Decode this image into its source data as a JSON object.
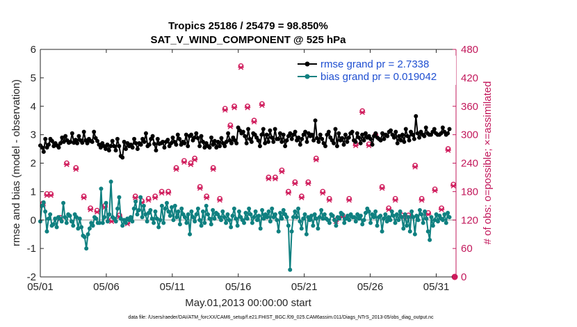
{
  "chart_data": {
    "type": "line",
    "title": "Tropics 25186 / 25479 = 98.850%",
    "subtitle": "SAT_V_WIND_COMPONENT @ 525 hPa",
    "xlabel": "May.01,2013 00:00:00 start",
    "ylabel": "rmse and bias (model - observation)",
    "ylabel_right": "# of obs: o=possible; ×=assimilated",
    "footnote": "data file: /Users/raeder/DAI/ATM_forcXX/CAM6_setup/f.e21.FHIST_BGC.f09_025.CAM6assim.011/Diags_NTrS_2013-05/obs_diag_output.nc",
    "xlim": [
      0,
      31.5
    ],
    "ylim": [
      -2,
      6
    ],
    "ylim_right": [
      0,
      480
    ],
    "x_ticks": [
      0,
      5,
      10,
      15,
      20,
      25,
      30
    ],
    "x_tick_labels": [
      "05/01",
      "05/06",
      "05/11",
      "05/16",
      "05/21",
      "05/26",
      "05/31"
    ],
    "y_ticks": [
      -2,
      -1,
      0,
      1,
      2,
      3,
      4,
      5,
      6
    ],
    "y_tick_labels": [
      "-2",
      "-1",
      "0",
      "1",
      "2",
      "3",
      "4",
      "5",
      "6"
    ],
    "y_ticks_right": [
      0,
      60,
      120,
      180,
      240,
      300,
      360,
      420,
      480
    ],
    "y_tick_labels_right": [
      "0",
      "60",
      "120",
      "180",
      "240",
      "300",
      "360",
      "420",
      "480"
    ],
    "zero_line": 0,
    "legend_position": "top-right",
    "colors": {
      "rmse": "#000000",
      "bias": "#0f8080",
      "counts": "#d01c5c",
      "axis_left": "#262626",
      "axis_right": "#c2185b",
      "legend_text": "#1f4fd1"
    },
    "series": [
      {
        "name": "rmse grand pr = 2.7338",
        "axis": "left",
        "values": [
          2.62,
          2.55,
          2.4,
          2.85,
          2.55,
          2.65,
          2.85,
          2.78,
          2.6,
          2.7,
          2.62,
          2.55,
          2.7,
          2.9,
          2.75,
          2.95,
          2.8,
          2.72,
          2.75,
          3.05,
          2.72,
          2.82,
          2.7,
          2.95,
          2.8,
          2.72,
          3.1,
          2.8,
          2.7,
          2.85,
          2.78,
          2.75,
          3.1,
          2.88,
          2.78,
          2.65,
          2.55,
          2.7,
          2.6,
          2.5,
          2.65,
          2.45,
          2.6,
          2.78,
          2.6,
          2.45,
          2.85,
          2.6,
          2.25,
          2.2,
          2.75,
          2.5,
          2.7,
          2.6,
          2.65,
          2.55,
          2.85,
          2.7,
          2.5,
          2.7,
          2.65,
          2.85,
          2.75,
          3.05,
          2.6,
          2.65,
          2.85,
          2.95,
          2.68,
          2.45,
          2.85,
          2.68,
          2.7,
          2.75,
          2.55,
          2.75,
          2.82,
          2.6,
          2.7,
          2.9,
          2.75,
          2.65,
          3.0,
          2.85,
          2.65,
          2.75,
          2.7,
          3.0,
          2.6,
          2.95,
          3.0,
          2.8,
          2.9,
          3.05,
          2.88,
          2.6,
          2.95,
          2.75,
          2.55,
          2.7,
          2.6,
          2.55,
          2.9,
          2.65,
          2.78,
          2.55,
          2.75,
          2.6,
          2.88,
          2.7,
          2.6,
          2.75,
          3.05,
          2.8,
          2.7,
          2.9,
          2.8,
          2.7,
          3.25,
          3.15,
          3.05,
          3.1,
          2.95,
          2.7,
          3.2,
          2.85,
          2.75,
          3.05,
          3.0,
          2.9,
          2.8,
          2.6,
          3.0,
          3.2,
          2.7,
          3.0,
          2.75,
          3.15,
          2.9,
          2.75,
          3.2,
          2.85,
          2.85,
          3.05,
          2.75,
          3.0,
          2.6,
          2.8,
          2.95,
          3.05,
          2.85,
          3.0,
          3.1,
          2.8,
          2.9,
          2.65,
          2.85,
          3.0,
          3.1,
          2.75,
          3.05,
          2.95,
          3.0,
          2.8,
          3.5,
          2.88,
          2.75,
          3.0,
          2.85,
          2.7,
          2.6,
          3.0,
          3.1,
          2.9,
          2.8,
          2.7,
          3.2,
          2.6,
          3.05,
          2.8,
          2.88,
          2.65,
          3.0,
          2.75,
          2.9,
          3.05,
          3.1,
          2.8,
          2.75,
          3.05,
          2.9,
          2.7,
          3.0,
          2.8,
          3.05,
          2.9,
          2.95,
          2.85,
          2.65,
          2.95,
          3.05,
          2.9,
          2.85,
          2.8,
          3.05,
          2.85,
          3.0,
          2.95,
          3.1,
          3.15,
          3.0,
          2.9,
          3.1,
          2.7,
          2.95,
          2.8,
          3.0,
          2.75,
          3.2,
          2.95,
          2.8,
          3.1,
          3.0,
          2.85,
          3.65,
          3.05,
          2.9,
          3.1,
          3.0,
          2.95,
          3.25,
          3.05,
          3.0,
          3.0,
          3.1,
          3.2,
          3.05,
          3.0,
          3.0,
          3.05,
          3.25,
          3.1,
          3.0,
          3.05,
          3.2
        ]
      },
      {
        "name": "bias grand pr = 0.019042",
        "axis": "left",
        "values": [
          -0.05,
          0.5,
          0.62,
          0.3,
          -0.4,
          0.05,
          0.2,
          -0.2,
          -0.15,
          0.05,
          -0.25,
          0.1,
          0.05,
          -0.05,
          0.6,
          0.1,
          -0.1,
          0.2,
          0.15,
          -0.05,
          -0.2,
          0.2,
          0.1,
          -0.3,
          0.05,
          -0.25,
          -0.55,
          -0.6,
          -1.0,
          -0.5,
          -0.3,
          -0.1,
          -0.2,
          0.1,
          0.05,
          -0.1,
          -0.1,
          1.1,
          -0.1,
          0.1,
          0.6,
          -0.05,
          0.2,
          1.35,
          0.1,
          0.05,
          -0.05,
          0.4,
          0.8,
          0.05,
          -0.2,
          0.0,
          -0.1,
          0.05,
          0.0,
          0.1,
          -0.05,
          0.4,
          0.65,
          0.2,
          0.35,
          0.8,
          0.1,
          0.5,
          0.2,
          -0.05,
          0.25,
          0.35,
          0.05,
          -0.1,
          0.3,
          0.05,
          -0.25,
          0.0,
          0.5,
          -0.1,
          0.4,
          0.6,
          0.3,
          0.15,
          0.45,
          0.0,
          0.5,
          0.1,
          0.3,
          -0.15,
          0.4,
          0.2,
          0.1,
          -0.1,
          0.2,
          -0.5,
          0.3,
          0.1,
          -0.05,
          0.2,
          0.4,
          0.0,
          -0.2,
          0.3,
          -0.1,
          0.5,
          0.2,
          0.05,
          -0.15,
          0.35,
          0.05,
          0.25,
          0.2,
          0.1,
          0.0,
          0.3,
          0.1,
          -0.1,
          0.2,
          0.0,
          -0.25,
          0.15,
          0.4,
          0.05,
          -0.2,
          0.3,
          0.1,
          0.0,
          -0.1,
          0.25,
          0.05,
          0.4,
          0.2,
          -0.1,
          0.1,
          0.3,
          0.0,
          0.15,
          -0.3,
          0.35,
          0.05,
          0.2,
          0.1,
          0.3,
          -0.05,
          0.4,
          0.1,
          0.2,
          0.0,
          -0.4,
          0.25,
          0.05,
          0.35,
          0.2,
          0.1,
          -0.2,
          -1.75,
          -0.4,
          0.1,
          0.3,
          0.1,
          0.4,
          -0.05,
          -0.3,
          0.05,
          0.2,
          -0.5,
          0.1,
          0.0,
          0.15,
          -0.2,
          0.2,
          0.05,
          -0.3,
          0.1,
          0.35,
          0.05,
          0.2,
          0.05,
          0.0,
          -0.1,
          0.2,
          0.15,
          0.0,
          -0.2,
          0.1,
          0.05,
          0.25,
          0.2,
          -0.1,
          0.05,
          0.15,
          0.0,
          0.2,
          0.1,
          0.1,
          -0.05,
          0.2,
          0.05,
          0.15,
          -0.15,
          0.0,
          0.25,
          0.4,
          0.3,
          -0.1,
          0.2,
          0.1,
          0.3,
          -0.2,
          0.1,
          0.15,
          -0.4,
          0.05,
          0.2,
          -0.05,
          0.1,
          0.0,
          0.3,
          0.15,
          -0.1,
          0.2,
          0.0,
          0.3,
          0.1,
          -0.3,
          0.2,
          -0.2,
          0.1,
          -0.4,
          0.3,
          0.1,
          -0.5,
          0.15,
          0.0,
          0.35,
          0.2,
          -0.1,
          0.3,
          0.05,
          -0.4,
          -0.7,
          0.1,
          -0.2,
          0.0,
          0.2,
          -0.05,
          0.15,
          0.05,
          0.0,
          0.2,
          -0.1,
          0.25,
          0.1
        ]
      },
      {
        "name": "obs possible",
        "axis": "right",
        "x": [
          0.2,
          0.5,
          0.8,
          1.5,
          2.0,
          2.7,
          3.3,
          3.8,
          4.3,
          4.9,
          5.4,
          6.0,
          6.6,
          7.2,
          7.7,
          8.2,
          8.7,
          9.2,
          9.7,
          10.3,
          10.9,
          11.4,
          11.7,
          12.1,
          12.6,
          13.1,
          13.6,
          14.0,
          14.4,
          14.7,
          15.2,
          15.7,
          16.2,
          16.8,
          17.3,
          17.8,
          18.3,
          18.8,
          19.3,
          19.8,
          20.3,
          20.9,
          21.4,
          21.9,
          22.4,
          22.9,
          23.4,
          23.9,
          24.4,
          24.9,
          25.4,
          25.9,
          26.4,
          26.9,
          27.4,
          27.9,
          28.4,
          28.9,
          29.4,
          29.9,
          30.4,
          30.9,
          31.3
        ],
        "values": [
          155,
          175,
          175,
          125,
          240,
          230,
          170,
          145,
          140,
          150,
          120,
          130,
          115,
          170,
          160,
          165,
          170,
          180,
          180,
          230,
          245,
          240,
          250,
          190,
          170,
          230,
          165,
          355,
          320,
          360,
          445,
          360,
          330,
          365,
          210,
          210,
          225,
          180,
          200,
          170,
          200,
          250,
          180,
          165,
          120,
          130,
          165,
          280,
          350,
          280,
          300,
          190,
          145,
          165,
          130,
          130,
          235,
          165,
          135,
          185,
          145,
          270,
          195
        ]
      },
      {
        "name": "obs assimilated",
        "axis": "right",
        "x": [
          0.2,
          0.5,
          0.8,
          1.5,
          2.0,
          2.7,
          3.3,
          3.8,
          4.3,
          4.9,
          5.4,
          6.0,
          6.6,
          7.2,
          7.7,
          8.2,
          8.7,
          9.2,
          9.7,
          10.3,
          10.9,
          11.4,
          11.7,
          12.1,
          12.6,
          13.1,
          13.6,
          14.0,
          14.4,
          14.7,
          15.2,
          15.7,
          16.2,
          16.8,
          17.3,
          17.8,
          18.3,
          18.8,
          19.3,
          19.8,
          20.3,
          20.9,
          21.4,
          21.9,
          22.4,
          22.9,
          23.4,
          23.9,
          24.4,
          24.9,
          25.4,
          25.9,
          26.4,
          26.9,
          27.4,
          27.9,
          28.4,
          28.9,
          29.4,
          29.9,
          30.4,
          30.9,
          31.3
        ],
        "values": [
          150,
          172,
          172,
          122,
          237,
          227,
          167,
          142,
          137,
          147,
          117,
          127,
          112,
          167,
          157,
          162,
          167,
          177,
          177,
          227,
          242,
          237,
          247,
          187,
          167,
          227,
          162,
          352,
          317,
          357,
          442,
          357,
          327,
          362,
          207,
          207,
          222,
          177,
          197,
          167,
          197,
          247,
          177,
          162,
          117,
          127,
          162,
          277,
          347,
          277,
          297,
          187,
          142,
          162,
          127,
          127,
          232,
          162,
          132,
          182,
          142,
          267,
          192
        ]
      },
      {
        "name": "obs zero",
        "axis": "right",
        "x": [
          31.4
        ],
        "values": [
          0
        ]
      }
    ]
  }
}
